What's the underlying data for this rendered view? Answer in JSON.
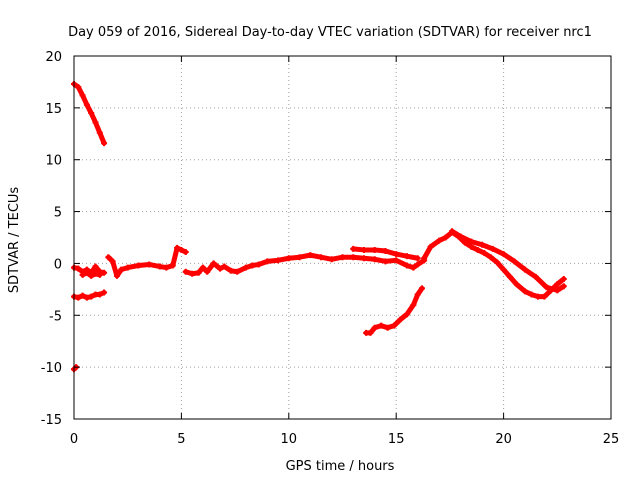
{
  "chart_data": {
    "type": "scatter",
    "title": "Day 059 of 2016, Sidereal Day-to-day VTEC variation (SDTVAR) for receiver nrc1",
    "xlabel": "GPS time / hours",
    "ylabel": "SDTVAR / TECUs",
    "xlim": [
      0,
      25
    ],
    "ylim": [
      -15,
      20
    ],
    "xticks": [
      0,
      5,
      10,
      15,
      20,
      25
    ],
    "yticks": [
      -15,
      -10,
      -5,
      0,
      5,
      10,
      15,
      20
    ],
    "grid": true,
    "series_color": "#ff0000",
    "segments": [
      {
        "name": "early-descending",
        "x": [
          0.0,
          0.2,
          0.4,
          0.6,
          0.8,
          1.0,
          1.2,
          1.4
        ],
        "y": [
          17.3,
          17.0,
          16.2,
          15.3,
          14.5,
          13.6,
          12.6,
          11.6
        ]
      },
      {
        "name": "main-trace-a",
        "x": [
          0.0,
          0.2,
          0.4,
          0.6,
          0.8,
          1.0,
          1.2,
          1.4
        ],
        "y": [
          -0.4,
          -0.5,
          -0.8,
          -0.6,
          -0.9,
          -0.3,
          -0.8,
          -0.9
        ]
      },
      {
        "name": "main-trace-b",
        "x": [
          0.4,
          0.6,
          0.8,
          1.0,
          1.2
        ],
        "y": [
          -1.1,
          -0.9,
          -1.2,
          -1.0,
          -1.1
        ]
      },
      {
        "name": "main-trace-c",
        "x": [
          1.6,
          1.8,
          2.0,
          2.2,
          2.5,
          3.0,
          3.5,
          4.0,
          4.3,
          4.6,
          4.8,
          5.0,
          5.2
        ],
        "y": [
          0.6,
          0.2,
          -1.2,
          -0.6,
          -0.4,
          -0.2,
          -0.1,
          -0.3,
          -0.4,
          -0.2,
          1.5,
          1.3,
          1.1
        ]
      },
      {
        "name": "main-trace-d",
        "x": [
          5.2,
          5.5,
          5.8,
          6.0,
          6.2,
          6.5,
          6.8,
          7.0,
          7.3,
          7.6,
          8.0,
          8.3,
          8.6,
          9.0,
          9.5,
          10.0,
          10.5,
          11.0,
          11.5,
          12.0,
          12.5,
          13.0,
          13.5,
          14.0,
          14.5,
          15.0,
          15.5,
          15.8,
          16.0,
          16.3
        ],
        "y": [
          -0.8,
          -1.0,
          -0.9,
          -0.4,
          -0.8,
          0.0,
          -0.5,
          -0.3,
          -0.7,
          -0.8,
          -0.4,
          -0.2,
          -0.1,
          0.2,
          0.3,
          0.5,
          0.6,
          0.8,
          0.6,
          0.4,
          0.6,
          0.6,
          0.5,
          0.4,
          0.2,
          0.3,
          -0.2,
          -0.4,
          -0.1,
          0.3
        ]
      },
      {
        "name": "main-trace-e",
        "x": [
          13.0,
          13.5,
          14.0,
          14.5,
          15.0,
          15.5,
          16.0
        ],
        "y": [
          1.4,
          1.3,
          1.3,
          1.2,
          0.9,
          0.7,
          0.5
        ]
      },
      {
        "name": "main-trace-f",
        "x": [
          16.3,
          16.6,
          17.0,
          17.3,
          17.6,
          17.9,
          18.2,
          18.5,
          18.8,
          19.1,
          19.4,
          19.7,
          20.0,
          20.3,
          20.6,
          21.0,
          21.3,
          21.6,
          21.9,
          22.2,
          22.5,
          22.8
        ],
        "y": [
          0.5,
          1.6,
          2.2,
          2.5,
          3.0,
          2.6,
          2.0,
          1.6,
          1.3,
          1.0,
          0.6,
          0.1,
          -0.6,
          -1.3,
          -2.0,
          -2.7,
          -3.0,
          -3.2,
          -3.2,
          -2.6,
          -2.0,
          -1.5
        ]
      },
      {
        "name": "main-trace-g",
        "x": [
          17.6,
          18.0,
          18.5,
          19.0,
          19.5,
          20.0,
          20.5,
          21.0,
          21.5,
          22.0,
          22.5,
          22.8
        ],
        "y": [
          3.1,
          2.6,
          2.1,
          1.8,
          1.4,
          0.9,
          0.2,
          -0.6,
          -1.3,
          -2.3,
          -2.6,
          -2.2
        ]
      },
      {
        "name": "low-trace-a",
        "x": [
          0.0,
          0.2,
          0.4,
          0.6,
          0.8,
          1.0,
          1.2,
          1.4
        ],
        "y": [
          -3.2,
          -3.3,
          -3.1,
          -3.3,
          -3.2,
          -3.0,
          -3.0,
          -2.8
        ]
      },
      {
        "name": "low-trace-b",
        "x": [
          13.6,
          13.8,
          14.0,
          14.3,
          14.6,
          14.9,
          15.2,
          15.5,
          15.8,
          16.0,
          16.2
        ],
        "y": [
          -6.7,
          -6.7,
          -6.2,
          -6.0,
          -6.2,
          -6.0,
          -5.4,
          -4.9,
          -4.0,
          -3.0,
          -2.4
        ]
      },
      {
        "name": "isolated-point",
        "x": [
          0.0,
          0.1
        ],
        "y": [
          -10.2,
          -10.0
        ]
      }
    ]
  }
}
